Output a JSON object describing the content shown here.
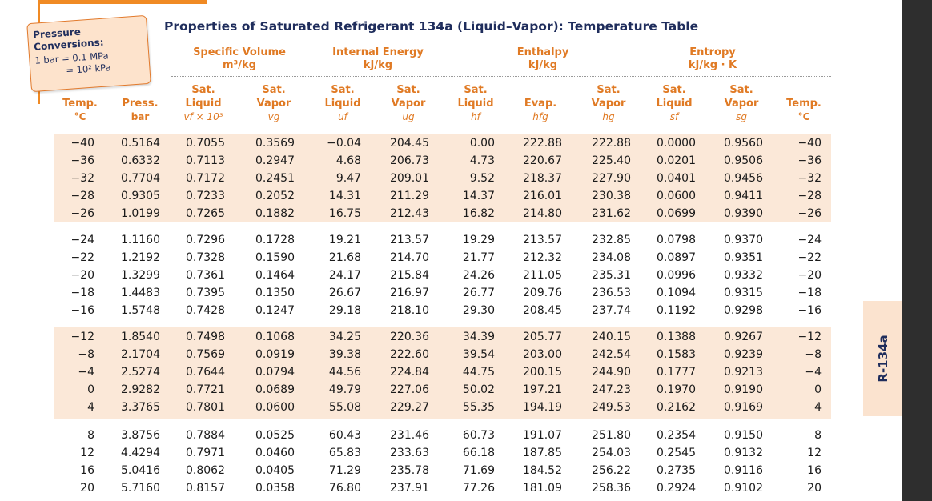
{
  "title": "Properties of Saturated Refrigerant 134a (Liquid–Vapor): Temperature Table",
  "note": {
    "title": "Pressure Conversions:",
    "line1": "1 bar = 0.1 MPa",
    "line2": "= 10² kPa"
  },
  "groups": [
    {
      "label": "Specific Volume",
      "unit": "m³/kg"
    },
    {
      "label": "Internal Energy",
      "unit": "kJ/kg"
    },
    {
      "label": "Enthalpy",
      "unit": "kJ/kg"
    },
    {
      "label": "Entropy",
      "unit": "kJ/kg · K"
    }
  ],
  "columns": [
    {
      "h1": "",
      "h2": "Temp.",
      "h3": "°C"
    },
    {
      "h1": "",
      "h2": "Press.",
      "h3": "bar"
    },
    {
      "h1": "Sat.",
      "h2": "Liquid",
      "h3": "vf × 10³"
    },
    {
      "h1": "Sat.",
      "h2": "Vapor",
      "h3": "vg"
    },
    {
      "h1": "Sat.",
      "h2": "Liquid",
      "h3": "uf"
    },
    {
      "h1": "Sat.",
      "h2": "Vapor",
      "h3": "ug"
    },
    {
      "h1": "Sat.",
      "h2": "Liquid",
      "h3": "hf"
    },
    {
      "h1": "",
      "h2": "Evap.",
      "h3": "hfg"
    },
    {
      "h1": "Sat.",
      "h2": "Vapor",
      "h3": "hg"
    },
    {
      "h1": "Sat.",
      "h2": "Liquid",
      "h3": "sf"
    },
    {
      "h1": "Sat.",
      "h2": "Vapor",
      "h3": "sg"
    },
    {
      "h1": "",
      "h2": "Temp.",
      "h3": "°C"
    }
  ],
  "rows": [
    [
      "−40",
      "0.5164",
      "0.7055",
      "0.3569",
      "−0.04",
      "204.45",
      "0.00",
      "222.88",
      "222.88",
      "0.0000",
      "0.9560",
      "−40"
    ],
    [
      "−36",
      "0.6332",
      "0.7113",
      "0.2947",
      "4.68",
      "206.73",
      "4.73",
      "220.67",
      "225.40",
      "0.0201",
      "0.9506",
      "−36"
    ],
    [
      "−32",
      "0.7704",
      "0.7172",
      "0.2451",
      "9.47",
      "209.01",
      "9.52",
      "218.37",
      "227.90",
      "0.0401",
      "0.9456",
      "−32"
    ],
    [
      "−28",
      "0.9305",
      "0.7233",
      "0.2052",
      "14.31",
      "211.29",
      "14.37",
      "216.01",
      "230.38",
      "0.0600",
      "0.9411",
      "−28"
    ],
    [
      "−26",
      "1.0199",
      "0.7265",
      "0.1882",
      "16.75",
      "212.43",
      "16.82",
      "214.80",
      "231.62",
      "0.0699",
      "0.9390",
      "−26"
    ],
    [
      "−24",
      "1.1160",
      "0.7296",
      "0.1728",
      "19.21",
      "213.57",
      "19.29",
      "213.57",
      "232.85",
      "0.0798",
      "0.9370",
      "−24"
    ],
    [
      "−22",
      "1.2192",
      "0.7328",
      "0.1590",
      "21.68",
      "214.70",
      "21.77",
      "212.32",
      "234.08",
      "0.0897",
      "0.9351",
      "−22"
    ],
    [
      "−20",
      "1.3299",
      "0.7361",
      "0.1464",
      "24.17",
      "215.84",
      "24.26",
      "211.05",
      "235.31",
      "0.0996",
      "0.9332",
      "−20"
    ],
    [
      "−18",
      "1.4483",
      "0.7395",
      "0.1350",
      "26.67",
      "216.97",
      "26.77",
      "209.76",
      "236.53",
      "0.1094",
      "0.9315",
      "−18"
    ],
    [
      "−16",
      "1.5748",
      "0.7428",
      "0.1247",
      "29.18",
      "218.10",
      "29.30",
      "208.45",
      "237.74",
      "0.1192",
      "0.9298",
      "−16"
    ],
    [
      "−12",
      "1.8540",
      "0.7498",
      "0.1068",
      "34.25",
      "220.36",
      "34.39",
      "205.77",
      "240.15",
      "0.1388",
      "0.9267",
      "−12"
    ],
    [
      "−8",
      "2.1704",
      "0.7569",
      "0.0919",
      "39.38",
      "222.60",
      "39.54",
      "203.00",
      "242.54",
      "0.1583",
      "0.9239",
      "−8"
    ],
    [
      "−4",
      "2.5274",
      "0.7644",
      "0.0794",
      "44.56",
      "224.84",
      "44.75",
      "200.15",
      "244.90",
      "0.1777",
      "0.9213",
      "−4"
    ],
    [
      "0",
      "2.9282",
      "0.7721",
      "0.0689",
      "49.79",
      "227.06",
      "50.02",
      "197.21",
      "247.23",
      "0.1970",
      "0.9190",
      "0"
    ],
    [
      "4",
      "3.3765",
      "0.7801",
      "0.0600",
      "55.08",
      "229.27",
      "55.35",
      "194.19",
      "249.53",
      "0.2162",
      "0.9169",
      "4"
    ],
    [
      "8",
      "3.8756",
      "0.7884",
      "0.0525",
      "60.43",
      "231.46",
      "60.73",
      "191.07",
      "251.80",
      "0.2354",
      "0.9150",
      "8"
    ],
    [
      "12",
      "4.4294",
      "0.7971",
      "0.0460",
      "65.83",
      "233.63",
      "66.18",
      "187.85",
      "254.03",
      "0.2545",
      "0.9132",
      "12"
    ],
    [
      "16",
      "5.0416",
      "0.8062",
      "0.0405",
      "71.29",
      "235.78",
      "71.69",
      "184.52",
      "256.22",
      "0.2735",
      "0.9116",
      "16"
    ],
    [
      "20",
      "5.7160",
      "0.8157",
      "0.0358",
      "76.80",
      "237.91",
      "77.26",
      "181.09",
      "258.36",
      "0.2924",
      "0.9102",
      "20"
    ]
  ],
  "tab_label": "R-134a",
  "colors": {
    "accent": "#e07a24",
    "band": "#fbe8d8",
    "navy": "#1f2d5c"
  }
}
